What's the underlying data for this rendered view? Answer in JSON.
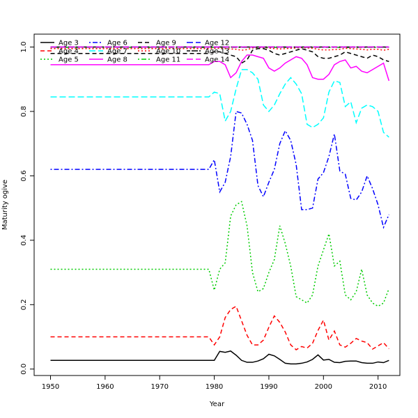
{
  "chart_data": {
    "type": "line",
    "title": "",
    "xlabel": "Year",
    "ylabel": "Maturity ogive",
    "xlim": [
      1947,
      2014
    ],
    "ylim": [
      -0.02,
      1.04
    ],
    "xticks": [
      1950,
      1960,
      1970,
      1980,
      1990,
      2000,
      2010
    ],
    "yticks": [
      0.0,
      0.2,
      0.4,
      0.6,
      0.8,
      1.0
    ],
    "ytick_labels": [
      "0.0",
      "0.2",
      "0.4",
      "0.6",
      "0.8",
      "1.0"
    ],
    "legend_position": "top-left",
    "grid": false,
    "series": [
      {
        "name": "Age 3",
        "color": "#000000",
        "dash": "solid",
        "x": [
          1950,
          1979,
          1980,
          1981,
          1982,
          1983,
          1984,
          1985,
          1986,
          1987,
          1988,
          1989,
          1990,
          1991,
          1992,
          1993,
          1994,
          1995,
          1996,
          1997,
          1998,
          1999,
          2000,
          2001,
          2002,
          2003,
          2004,
          2005,
          2006,
          2007,
          2008,
          2009,
          2010,
          2011,
          2012
        ],
        "y": [
          0.027,
          0.027,
          0.027,
          0.055,
          0.052,
          0.056,
          0.043,
          0.027,
          0.021,
          0.021,
          0.025,
          0.032,
          0.046,
          0.041,
          0.03,
          0.018,
          0.016,
          0.016,
          0.018,
          0.022,
          0.03,
          0.044,
          0.028,
          0.03,
          0.021,
          0.02,
          0.024,
          0.025,
          0.025,
          0.02,
          0.018,
          0.018,
          0.022,
          0.02,
          0.027
        ]
      },
      {
        "name": "Age 4",
        "color": "#ff0000",
        "dash": "dashed",
        "x": [
          1950,
          1979,
          1980,
          1981,
          1982,
          1983,
          1984,
          1985,
          1986,
          1987,
          1988,
          1989,
          1990,
          1991,
          1992,
          1993,
          1994,
          1995,
          1996,
          1997,
          1998,
          1999,
          2000,
          2001,
          2002,
          2003,
          2004,
          2005,
          2006,
          2007,
          2008,
          2009,
          2010,
          2011,
          2012
        ],
        "y": [
          0.1,
          0.1,
          0.075,
          0.1,
          0.16,
          0.185,
          0.195,
          0.15,
          0.105,
          0.075,
          0.075,
          0.09,
          0.13,
          0.165,
          0.145,
          0.115,
          0.075,
          0.06,
          0.07,
          0.065,
          0.08,
          0.12,
          0.152,
          0.09,
          0.118,
          0.075,
          0.068,
          0.08,
          0.095,
          0.087,
          0.082,
          0.062,
          0.072,
          0.082,
          0.063
        ]
      },
      {
        "name": "Age 5",
        "color": "#00cc00",
        "dash": "dotted",
        "x": [
          1950,
          1979,
          1980,
          1981,
          1982,
          1983,
          1984,
          1985,
          1986,
          1987,
          1988,
          1989,
          1990,
          1991,
          1992,
          1993,
          1994,
          1995,
          1996,
          1997,
          1998,
          1999,
          2000,
          2001,
          2002,
          2003,
          2004,
          2005,
          2006,
          2007,
          2008,
          2009,
          2010,
          2011,
          2012
        ],
        "y": [
          0.31,
          0.31,
          0.245,
          0.31,
          0.33,
          0.475,
          0.51,
          0.52,
          0.445,
          0.3,
          0.24,
          0.25,
          0.3,
          0.34,
          0.445,
          0.39,
          0.32,
          0.225,
          0.215,
          0.205,
          0.23,
          0.32,
          0.37,
          0.42,
          0.32,
          0.335,
          0.23,
          0.215,
          0.24,
          0.31,
          0.23,
          0.205,
          0.195,
          0.205,
          0.25
        ]
      },
      {
        "name": "Age 6",
        "color": "#0000ff",
        "dash": "dotdash",
        "x": [
          1950,
          1979,
          1980,
          1981,
          1982,
          1983,
          1984,
          1985,
          1986,
          1987,
          1988,
          1989,
          1990,
          1991,
          1992,
          1993,
          1994,
          1995,
          1996,
          1997,
          1998,
          1999,
          2000,
          2001,
          2002,
          2003,
          2004,
          2005,
          2006,
          2007,
          2008,
          2009,
          2010,
          2011,
          2012
        ],
        "y": [
          0.62,
          0.62,
          0.65,
          0.55,
          0.58,
          0.66,
          0.8,
          0.795,
          0.76,
          0.71,
          0.57,
          0.535,
          0.58,
          0.62,
          0.7,
          0.74,
          0.71,
          0.635,
          0.495,
          0.495,
          0.5,
          0.59,
          0.61,
          0.66,
          0.73,
          0.615,
          0.605,
          0.53,
          0.525,
          0.55,
          0.6,
          0.56,
          0.51,
          0.44,
          0.48
        ]
      },
      {
        "name": "Age 7",
        "color": "#00ffff",
        "dash": "longdash",
        "x": [
          1950,
          1979,
          1980,
          1981,
          1982,
          1983,
          1984,
          1985,
          1986,
          1987,
          1988,
          1989,
          1990,
          1991,
          1992,
          1993,
          1994,
          1995,
          1996,
          1997,
          1998,
          1999,
          2000,
          2001,
          2002,
          2003,
          2004,
          2005,
          2006,
          2007,
          2008,
          2009,
          2010,
          2011,
          2012
        ],
        "y": [
          0.845,
          0.845,
          0.86,
          0.855,
          0.77,
          0.8,
          0.87,
          0.93,
          0.93,
          0.92,
          0.9,
          0.82,
          0.8,
          0.82,
          0.855,
          0.885,
          0.905,
          0.885,
          0.855,
          0.76,
          0.75,
          0.76,
          0.78,
          0.86,
          0.895,
          0.89,
          0.815,
          0.83,
          0.765,
          0.81,
          0.82,
          0.815,
          0.8,
          0.735,
          0.72
        ]
      },
      {
        "name": "Age 8",
        "color": "#ff00ff",
        "dash": "solid",
        "x": [
          1950,
          1979,
          1980,
          1981,
          1982,
          1983,
          1984,
          1985,
          1986,
          1987,
          1988,
          1989,
          1990,
          1991,
          1992,
          1993,
          1994,
          1995,
          1996,
          1997,
          1998,
          1999,
          2000,
          2001,
          2002,
          2003,
          2004,
          2005,
          2006,
          2007,
          2008,
          2009,
          2010,
          2011,
          2012
        ],
        "y": [
          0.945,
          0.945,
          0.955,
          0.955,
          0.945,
          0.905,
          0.92,
          0.955,
          0.975,
          0.975,
          0.97,
          0.965,
          0.935,
          0.925,
          0.935,
          0.95,
          0.96,
          0.97,
          0.965,
          0.945,
          0.905,
          0.9,
          0.9,
          0.915,
          0.945,
          0.955,
          0.96,
          0.935,
          0.94,
          0.925,
          0.92,
          0.93,
          0.94,
          0.95,
          0.895
        ]
      },
      {
        "name": "Age 9",
        "color": "#000000",
        "dash": "dashed",
        "x": [
          1950,
          1979,
          1980,
          1981,
          1982,
          1983,
          1984,
          1985,
          1986,
          1987,
          1988,
          1989,
          1990,
          1991,
          1992,
          1993,
          1994,
          1995,
          1996,
          1997,
          1998,
          1999,
          2000,
          2001,
          2002,
          2003,
          2004,
          2005,
          2006,
          2007,
          2008,
          2009,
          2010,
          2011,
          2012
        ],
        "y": [
          0.98,
          0.98,
          0.985,
          0.985,
          0.98,
          0.975,
          0.97,
          0.95,
          0.96,
          0.99,
          0.995,
          0.995,
          0.99,
          0.98,
          0.975,
          0.98,
          0.985,
          0.99,
          0.995,
          0.99,
          0.985,
          0.97,
          0.965,
          0.965,
          0.97,
          0.975,
          0.985,
          0.98,
          0.975,
          0.97,
          0.965,
          0.975,
          0.97,
          0.96,
          0.955
        ]
      },
      {
        "name": "Age 10",
        "color": "#ff0000",
        "dash": "dotted",
        "x": [
          1950,
          1979,
          1980,
          1981,
          1982,
          1983,
          1984,
          1985,
          1986,
          1987,
          1988,
          1989,
          1990,
          1991,
          1992,
          1993,
          1994,
          1995,
          1996,
          1997,
          1998,
          1999,
          2000,
          2001,
          2002,
          2003,
          2004,
          2005,
          2006,
          2007,
          2008,
          2009,
          2010,
          2011,
          2012
        ],
        "y": [
          0.995,
          0.995,
          0.996,
          0.996,
          0.995,
          0.994,
          0.993,
          0.99,
          0.992,
          0.997,
          0.998,
          0.998,
          0.997,
          0.995,
          0.994,
          0.995,
          0.996,
          0.997,
          0.998,
          0.997,
          0.996,
          0.993,
          0.991,
          0.991,
          0.992,
          0.993,
          0.996,
          0.995,
          0.994,
          0.993,
          0.991,
          0.993,
          0.993,
          0.99,
          0.993
        ]
      },
      {
        "name": "Age 11",
        "color": "#00cc00",
        "dash": "dotdash",
        "x": [
          1950,
          2012
        ],
        "y": [
          0.999,
          0.999
        ]
      },
      {
        "name": "Age 12",
        "color": "#0000ff",
        "dash": "longdash",
        "x": [
          1950,
          2012
        ],
        "y": [
          1.0,
          1.0
        ]
      },
      {
        "name": "Age 13",
        "color": "#000000",
        "dash": "twodash",
        "x": [
          1950,
          2012
        ],
        "y": [
          1.0,
          1.0
        ]
      },
      {
        "name": "Age 14",
        "color": "#ff00ff",
        "dash": "longdash",
        "x": [
          1950,
          2012
        ],
        "y": [
          1.0,
          1.0
        ]
      }
    ]
  }
}
